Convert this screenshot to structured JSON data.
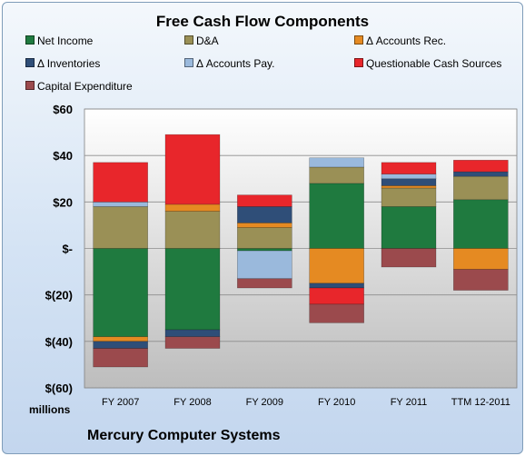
{
  "chart_data": {
    "type": "bar",
    "subtype": "stacked",
    "title": "Free Cash Flow Components",
    "ylabel": "millions",
    "xlabel": "",
    "company": "Mercury Computer Systems",
    "categories": [
      "FY 2007",
      "FY 2008",
      "FY 2009",
      "FY 2010",
      "FY 2011",
      "TTM 12-2011"
    ],
    "ylim": [
      -60,
      60
    ],
    "yticks": [
      {
        "value": 60,
        "label": "$60"
      },
      {
        "value": 40,
        "label": "$40"
      },
      {
        "value": 20,
        "label": "$20"
      },
      {
        "value": 0,
        "label": "$-"
      },
      {
        "value": -20,
        "label": "$(20)"
      },
      {
        "value": -40,
        "label": "$(40)"
      },
      {
        "value": -60,
        "label": "$(60)"
      }
    ],
    "grid": true,
    "legend_position": "top",
    "series": [
      {
        "name": "Net Income",
        "color": "#1f7a3f",
        "values": [
          -38,
          -35,
          -1,
          28,
          18,
          21
        ]
      },
      {
        "name": "D&A",
        "color": "#9a9056",
        "values": [
          18,
          16,
          9,
          7,
          8,
          10
        ]
      },
      {
        "name": "Δ Accounts Rec.",
        "color": "#e58a22",
        "values": [
          -2,
          3,
          2,
          -15,
          1,
          -9
        ]
      },
      {
        "name": "Δ Inventories",
        "color": "#2f4e78",
        "values": [
          -3,
          -3,
          7,
          -2,
          3,
          2
        ]
      },
      {
        "name": "Δ Accounts Pay.",
        "color": "#9ab9dc",
        "values": [
          2,
          0,
          -12,
          4,
          2,
          0
        ]
      },
      {
        "name": "Questionable Cash Sources",
        "color": "#e8262b",
        "values": [
          17,
          30,
          5,
          -7,
          5,
          5
        ]
      },
      {
        "name": "Capital Expenditure",
        "color": "#9b4a4d",
        "values": [
          -8,
          -5,
          -4,
          -8,
          -8,
          -9
        ]
      }
    ]
  }
}
